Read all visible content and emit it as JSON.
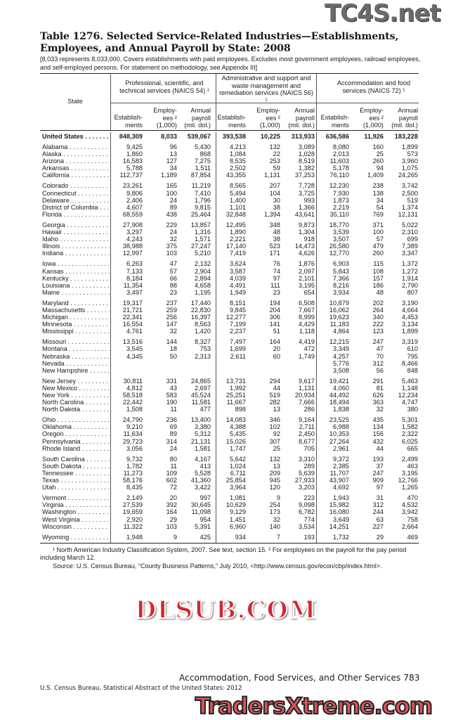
{
  "title": "Table 1276. Selected Service-Related Industries—Establishments, Employees, and Annual Payroll by State: 2008",
  "headnote": "[8,033 represents 8,033,000. Covers establishments with paid employees. Excludes most government employees, railroad employees, and self-employed persons. For statement on methodology, see Appendix III]",
  "table": {
    "state_header": "State",
    "groups": [
      "Professional, scientific, and technical services (NAICS 54) ¹",
      "Administrative and support and waste management and remediation services (NAICS 56) ¹",
      "Accommodation and food services (NAICS 72) ¹"
    ],
    "subheaders": [
      "Establish-ments",
      "Employ-ees ² (1,000)",
      "Annual payroll (mil. dol.)"
    ],
    "us_row": [
      "United States",
      "848,309",
      "8,033",
      "539,067",
      "393,538",
      "10,225",
      "313,933",
      "636,586",
      "11,926",
      "183,228"
    ],
    "rows": [
      [
        "Alabama",
        "9,425",
        "96",
        "5,430",
        "4,213",
        "132",
        "3,089",
        "8,080",
        "160",
        "1,899"
      ],
      [
        "Alaska",
        "1,860",
        "13",
        "868",
        "1,084",
        "22",
        "1,028",
        "2,013",
        "25",
        "573"
      ],
      [
        "Arizona",
        "16,583",
        "127",
        "7,275",
        "8,535",
        "253",
        "8,519",
        "11,603",
        "260",
        "3,960"
      ],
      [
        "Arkansas",
        "5,788",
        "34",
        "1,511",
        "2,502",
        "59",
        "1,382",
        "5,178",
        "94",
        "1,075"
      ],
      [
        "California",
        "112,737",
        "1,189",
        "87,854",
        "43,355",
        "1,131",
        "37,253",
        "76,110",
        "1,409",
        "24,265"
      ],
      [
        "Colorado",
        "23,261",
        "165",
        "11,219",
        "8,565",
        "207",
        "7,728",
        "12,230",
        "238",
        "3,742"
      ],
      [
        "Connecticut",
        "9,806",
        "100",
        "7,410",
        "5,494",
        "104",
        "3,725",
        "7,930",
        "138",
        "2,500"
      ],
      [
        "Delaware",
        "2,406",
        "24",
        "1,796",
        "1,400",
        "30",
        "993",
        "1,873",
        "34",
        "519"
      ],
      [
        "District of Columbia",
        "4,607",
        "89",
        "9,815",
        "1,101",
        "38",
        "1,366",
        "2,219",
        "54",
        "1,374"
      ],
      [
        "Florida",
        "68,559",
        "438",
        "25,464",
        "32,848",
        "1,394",
        "43,641",
        "35,110",
        "769",
        "12,131"
      ],
      [
        "Georgia",
        "27,908",
        "229",
        "13,857",
        "12,495",
        "348",
        "9,873",
        "18,770",
        "371",
        "5,022"
      ],
      [
        "Hawaii",
        "3,297",
        "24",
        "1,316",
        "1,890",
        "48",
        "1,304",
        "3,539",
        "100",
        "2,310"
      ],
      [
        "Idaho",
        "4,243",
        "32",
        "1,571",
        "2,221",
        "38",
        "918",
        "3,507",
        "57",
        "699"
      ],
      [
        "Illinois",
        "38,988",
        "375",
        "27,247",
        "17,140",
        "523",
        "14,473",
        "26,580",
        "479",
        "7,389"
      ],
      [
        "Indiana",
        "12,997",
        "103",
        "5,210",
        "7,419",
        "171",
        "4,626",
        "12,770",
        "260",
        "3,347"
      ],
      [
        "Iowa",
        "6,263",
        "47",
        "2,132",
        "3,624",
        "76",
        "1,876",
        "6,903",
        "115",
        "1,372"
      ],
      [
        "Kansas",
        "7,133",
        "57",
        "2,904",
        "3,587",
        "74",
        "2,097",
        "5,843",
        "108",
        "1,272"
      ],
      [
        "Kentucky",
        "8,184",
        "66",
        "2,894",
        "4,039",
        "97",
        "2,101",
        "7,366",
        "157",
        "1,914"
      ],
      [
        "Louisiana",
        "11,354",
        "88",
        "4,658",
        "4,491",
        "111",
        "3,195",
        "8,216",
        "186",
        "2,790"
      ],
      [
        "Maine",
        "3,497",
        "23",
        "1,195",
        "1,949",
        "23",
        "654",
        "3,934",
        "48",
        "807"
      ],
      [
        "Maryland",
        "19,317",
        "237",
        "17,440",
        "8,151",
        "194",
        "6,508",
        "10,879",
        "202",
        "3,190"
      ],
      [
        "Massachusetts",
        "21,721",
        "259",
        "22,830",
        "9,845",
        "204",
        "7,667",
        "16,062",
        "264",
        "4,664"
      ],
      [
        "Michigan",
        "22,341",
        "256",
        "16,397",
        "12,277",
        "306",
        "8,999",
        "19,623",
        "340",
        "4,453"
      ],
      [
        "Minnesota",
        "16,554",
        "147",
        "8,563",
        "7,199",
        "141",
        "4,429",
        "11,183",
        "222",
        "3,134"
      ],
      [
        "Mississippi",
        "4,761",
        "32",
        "1,420",
        "2,237",
        "51",
        "1,118",
        "4,864",
        "123",
        "1,899"
      ],
      [
        "Missouri",
        "13,516",
        "144",
        "8,327",
        "7,497",
        "164",
        "4,419",
        "12,215",
        "247",
        "3,319"
      ],
      [
        "Montana",
        "3,545",
        "18",
        "753",
        "1,699",
        "20",
        "472",
        "3,349",
        "47",
        "610"
      ],
      [
        "Nebraska",
        "4,345",
        "50",
        "2,313",
        "2,611",
        "60",
        "1,749",
        "4,257",
        "70",
        "795"
      ],
      [
        "Nevada",
        "",
        "",
        "",
        "",
        "",
        "",
        "5,776",
        "312",
        "8,466"
      ],
      [
        "New Hampshire",
        "",
        "",
        "",
        "",
        "",
        "",
        "3,508",
        "56",
        "848"
      ],
      [
        "New Jersey",
        "30,811",
        "331",
        "24,865",
        "13,731",
        "294",
        "9,617",
        "19,421",
        "291",
        "5,463"
      ],
      [
        "New Mexico",
        "4,812",
        "43",
        "2,697",
        "1,992",
        "44",
        "1,131",
        "4,060",
        "81",
        "1,148"
      ],
      [
        "New York",
        "58,518",
        "583",
        "45,524",
        "25,251",
        "519",
        "20,934",
        "44,492",
        "626",
        "12,234"
      ],
      [
        "North Carolina",
        "22,442",
        "190",
        "11,581",
        "11,667",
        "282",
        "7,666",
        "18,494",
        "363",
        "4,747"
      ],
      [
        "North Dakota",
        "1,508",
        "11",
        "477",
        "898",
        "13",
        "286",
        "1,838",
        "32",
        "380"
      ],
      [
        "Ohio",
        "24,790",
        "236",
        "13,400",
        "14,083",
        "346",
        "9,164",
        "23,525",
        "435",
        "5,301"
      ],
      [
        "Oklahoma",
        "9,210",
        "69",
        "3,380",
        "4,388",
        "102",
        "2,711",
        "6,988",
        "134",
        "1,582"
      ],
      [
        "Oregon",
        "11,634",
        "89",
        "5,312",
        "5,435",
        "92",
        "2,450",
        "10,353",
        "156",
        "2,322"
      ],
      [
        "Pennsylvania",
        "29,723",
        "314",
        "21,131",
        "15,026",
        "307",
        "8,677",
        "27,264",
        "432",
        "6,025"
      ],
      [
        "Rhode Island",
        "3,056",
        "24",
        "1,581",
        "1,747",
        "25",
        "705",
        "2,961",
        "44",
        "665"
      ],
      [
        "South Carolina",
        "9,732",
        "80",
        "4,167",
        "5,642",
        "132",
        "3,310",
        "9,372",
        "193",
        "2,499"
      ],
      [
        "South Dakota",
        "1,782",
        "11",
        "413",
        "1,024",
        "13",
        "289",
        "2,385",
        "37",
        "463"
      ],
      [
        "Tennessee",
        "11,273",
        "109",
        "5,528",
        "6,711",
        "209",
        "5,639",
        "11,707",
        "247",
        "3,195"
      ],
      [
        "Texas",
        "58,176",
        "602",
        "41,360",
        "25,854",
        "945",
        "27,933",
        "43,907",
        "909",
        "12,766"
      ],
      [
        "Utah",
        "8,435",
        "72",
        "3,422",
        "3,964",
        "120",
        "3,203",
        "4,692",
        "97",
        "1,265"
      ],
      [
        "Vermont",
        "2,149",
        "20",
        "997",
        "1,081",
        "9",
        "223",
        "1,943",
        "31",
        "470"
      ],
      [
        "Virginia",
        "27,539",
        "392",
        "30,645",
        "10,629",
        "254",
        "9,098",
        "15,982",
        "312",
        "4,532"
      ],
      [
        "Washington",
        "19,659",
        "164",
        "11,098",
        "9,129",
        "173",
        "6,782",
        "16,080",
        "244",
        "3,942"
      ],
      [
        "West Virginia",
        "2,920",
        "29",
        "954",
        "1,451",
        "32",
        "774",
        "3,649",
        "63",
        "758"
      ],
      [
        "Wisconsin",
        "11,322",
        "103",
        "5,391",
        "6,960",
        "140",
        "3,534",
        "14,251",
        "227",
        "2,664"
      ],
      [
        "Wyoming",
        "1,948",
        "9",
        "425",
        "934",
        "7",
        "193",
        "1,732",
        "29",
        "469"
      ]
    ]
  },
  "footnote": "¹ North American Industry Classification System, 2007. See text, section 15. ² For employees on the payroll for the pay period including March 12.",
  "source": "Source: U.S. Census Bureau, “County Business Patterns,” July 2010, <http://www.census.gov/econ/cbp/index.html>.",
  "page_footer": "Accommodation, Food Services, and Other Services  783",
  "publication": "U.S. Census Bureau, Statistical Abstract of the United States: 2012",
  "watermarks": [
    "TC4S.net",
    "DLSUB.COM",
    "TradersXtreme.com"
  ]
}
